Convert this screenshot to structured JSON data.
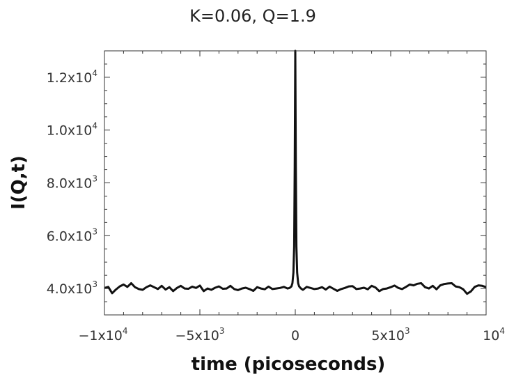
{
  "chart_data": {
    "type": "line",
    "title": "K=0.06, Q=1.9",
    "xlabel": "time (picoseconds)",
    "ylabel": "I(Q,t)",
    "xlim": [
      -10000,
      10000
    ],
    "ylim": [
      3000,
      13000
    ],
    "grid": false,
    "legend": "none",
    "line_color": "#111111",
    "x_ticks": [
      {
        "value": -10000,
        "mant": "−1x10",
        "exp": "4"
      },
      {
        "value": -5000,
        "mant": "−5x10",
        "exp": "3"
      },
      {
        "value": 0,
        "mant": "0",
        "exp": ""
      },
      {
        "value": 5000,
        "mant": "5x10",
        "exp": "3"
      },
      {
        "value": 10000,
        "mant": "10",
        "exp": "4"
      }
    ],
    "y_ticks": [
      {
        "value": 4000,
        "mant": "4.0x10",
        "exp": "3"
      },
      {
        "value": 6000,
        "mant": "6.0x10",
        "exp": "3"
      },
      {
        "value": 8000,
        "mant": "8.0x10",
        "exp": "3"
      },
      {
        "value": 10000,
        "mant": "1.0x10",
        "exp": "4"
      },
      {
        "value": 12000,
        "mant": "1.2x10",
        "exp": "4"
      }
    ],
    "series": [
      {
        "x": [
          -10000,
          -9800,
          -9600,
          -9400,
          -9200,
          -9000,
          -8800,
          -8600,
          -8400,
          -8200,
          -8000,
          -7800,
          -7600,
          -7400,
          -7200,
          -7000,
          -6800,
          -6600,
          -6400,
          -6200,
          -6000,
          -5800,
          -5600,
          -5400,
          -5200,
          -5000,
          -4800,
          -4600,
          -4400,
          -4200,
          -4000,
          -3800,
          -3600,
          -3400,
          -3200,
          -3000,
          -2800,
          -2600,
          -2400,
          -2200,
          -2000,
          -1800,
          -1600,
          -1400,
          -1200,
          -1000,
          -800,
          -600,
          -400,
          -300,
          -200,
          -150,
          -100,
          -60,
          -30,
          0,
          30,
          60,
          100,
          150,
          200,
          300,
          400,
          600,
          800,
          1000,
          1200,
          1400,
          1600,
          1800,
          2000,
          2200,
          2400,
          2600,
          2800,
          3000,
          3200,
          3400,
          3600,
          3800,
          4000,
          4200,
          4400,
          4600,
          4800,
          5000,
          5200,
          5400,
          5600,
          5800,
          6000,
          6200,
          6400,
          6600,
          6800,
          7000,
          7200,
          7400,
          7600,
          7800,
          8000,
          8200,
          8400,
          8600,
          8800,
          9000,
          9200,
          9400,
          9600,
          9800,
          10000
        ],
        "values": [
          4020,
          4060,
          3820,
          3960,
          4080,
          4150,
          4060,
          4200,
          4050,
          3980,
          3950,
          4050,
          4120,
          4050,
          3980,
          4100,
          3960,
          4050,
          3900,
          4020,
          4100,
          4000,
          3990,
          4070,
          4020,
          4110,
          3900,
          4000,
          3950,
          4030,
          4080,
          3990,
          4000,
          4100,
          3980,
          3940,
          4000,
          4030,
          3980,
          3910,
          4050,
          4000,
          3970,
          4070,
          3980,
          4000,
          4020,
          4060,
          4000,
          4020,
          4080,
          4200,
          4600,
          5600,
          8600,
          13000,
          8600,
          5600,
          4600,
          4200,
          4080,
          4000,
          3950,
          4060,
          4020,
          3980,
          4000,
          4050,
          3960,
          4070,
          3990,
          3910,
          3980,
          4020,
          4080,
          4090,
          3980,
          4000,
          4030,
          3970,
          4100,
          4040,
          3900,
          3980,
          4000,
          4050,
          4110,
          4020,
          3980,
          4060,
          4150,
          4120,
          4180,
          4200,
          4050,
          4000,
          4100,
          3970,
          4120,
          4170,
          4190,
          4200,
          4080,
          4050,
          3970,
          3800,
          3890,
          4060,
          4120,
          4100,
          4050
        ]
      }
    ]
  }
}
